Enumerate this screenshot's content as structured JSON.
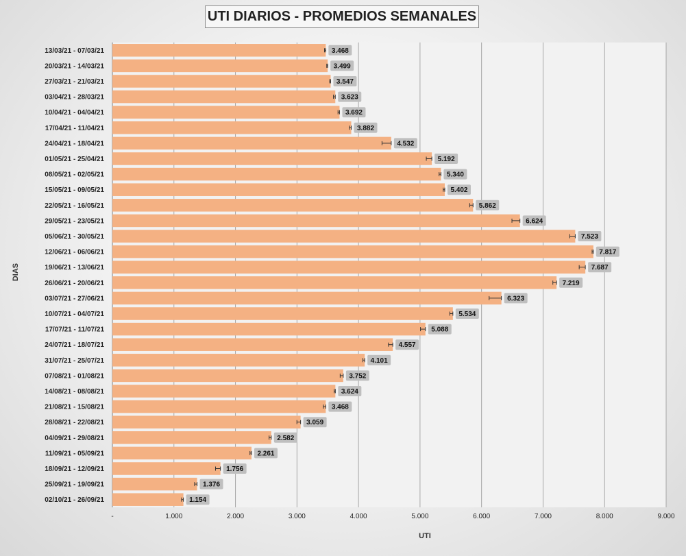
{
  "title": "UTI DIARIOS - PROMEDIOS SEMANALES",
  "chart_data": {
    "type": "bar",
    "orientation": "horizontal",
    "title": "UTI DIARIOS - PROMEDIOS SEMANALES",
    "xlabel": "UTI",
    "ylabel": "DIAS",
    "xlim": [
      0,
      9000
    ],
    "x_ticks": [
      0,
      1000,
      2000,
      3000,
      4000,
      5000,
      6000,
      7000,
      8000,
      9000
    ],
    "x_tick_labels": [
      "-",
      "1.000",
      "2.000",
      "3.000",
      "4.000",
      "5.000",
      "6.000",
      "7.000",
      "8.000",
      "9.000"
    ],
    "grid": "vertical",
    "bar_color": "#f4b183",
    "label_bg_color": "#bfbfbf",
    "categories": [
      "13/03/21 - 07/03/21",
      "20/03/21 - 14/03/21",
      "27/03/21 - 21/03/21",
      "03/04/21 - 28/03/21",
      "10/04/21 - 04/04/21",
      "17/04/21 - 11/04/21",
      "24/04/21 - 18/04/21",
      "01/05/21 - 25/04/21",
      "08/05/21 - 02/05/21",
      "15/05/21 - 09/05/21",
      "22/05/21 - 16/05/21",
      "29/05/21 - 23/05/21",
      "05/06/21 - 30/05/21",
      "12/06/21 - 06/06/21",
      "19/06/21 - 13/06/21",
      "26/06/21 - 20/06/21",
      "03/07/21 - 27/06/21",
      "10/07/21 - 04/07/21",
      "17/07/21 - 11/07/21",
      "24/07/21 - 18/07/21",
      "31/07/21 - 25/07/21",
      "07/08/21 - 01/08/21",
      "14/08/21 - 08/08/21",
      "21/08/21 - 15/08/21",
      "28/08/21 - 22/08/21",
      "04/09/21 - 29/08/21",
      "11/09/21 - 05/09/21",
      "18/09/21 - 12/09/21",
      "25/09/21 - 19/09/21",
      "02/10/21 - 26/09/21"
    ],
    "values": [
      3468,
      3499,
      3547,
      3623,
      3692,
      3882,
      4532,
      5192,
      5340,
      5402,
      5862,
      6624,
      7523,
      7817,
      7687,
      7219,
      6323,
      5534,
      5088,
      4557,
      4101,
      3752,
      3624,
      3468,
      3059,
      2582,
      2261,
      1756,
      1376,
      1154
    ],
    "value_labels": [
      "3.468",
      "3.499",
      "3.547",
      "3.623",
      "3.692",
      "3.882",
      "4.532",
      "5.192",
      "5.340",
      "5.402",
      "5.862",
      "6.624",
      "7.523",
      "7.817",
      "7.687",
      "7.219",
      "6.323",
      "5.534",
      "5.088",
      "4.557",
      "4.101",
      "3.752",
      "3.624",
      "3.468",
      "3.059",
      "2.582",
      "2.261",
      "1.756",
      "1.376",
      "1.154"
    ],
    "error_minus": [
      20,
      15,
      15,
      30,
      25,
      30,
      150,
      90,
      30,
      25,
      55,
      130,
      90,
      20,
      100,
      60,
      200,
      50,
      80,
      70,
      30,
      50,
      20,
      40,
      60,
      35,
      25,
      80,
      40,
      30
    ]
  }
}
